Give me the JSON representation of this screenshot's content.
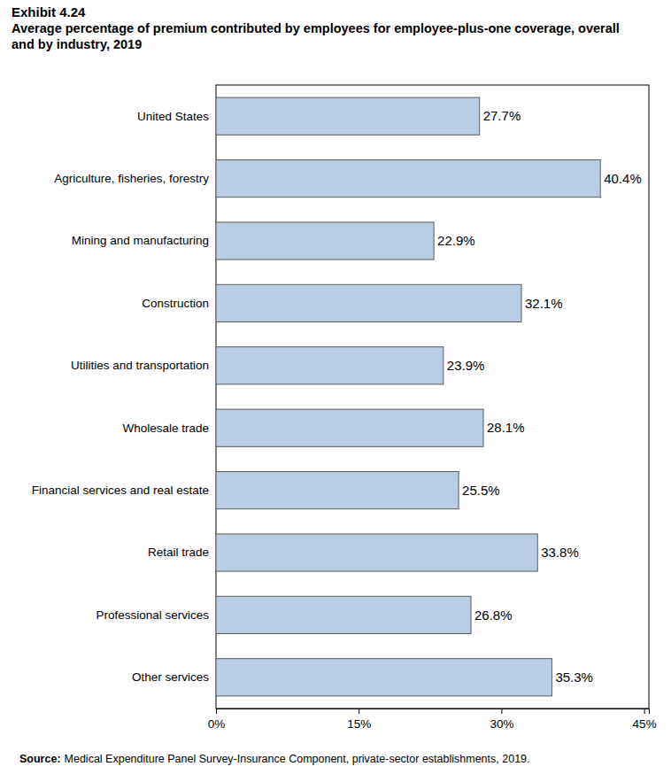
{
  "chart_data": {
    "type": "bar",
    "orientation": "horizontal",
    "title": "Exhibit 4.24",
    "subtitle": "Average percentage of premium contributed by employees for employee-plus-one coverage, overall and by industry, 2019",
    "categories": [
      "United States",
      "Agriculture, fisheries, forestry",
      "Mining and manufacturing",
      "Construction",
      "Utilities and transportation",
      "Wholesale trade",
      "Financial services and real estate",
      "Retail trade",
      "Professional services",
      "Other services"
    ],
    "values": [
      27.7,
      40.4,
      22.9,
      32.1,
      23.9,
      28.1,
      25.5,
      33.8,
      26.8,
      35.3
    ],
    "value_labels": [
      "27.7%",
      "40.4%",
      "22.9%",
      "32.1%",
      "23.9%",
      "28.1%",
      "25.5%",
      "33.8%",
      "26.8%",
      "35.3%"
    ],
    "color": "#b9cde5",
    "xlim": [
      0,
      45.5
    ],
    "xticks": [
      {
        "value": 0,
        "label": "0%"
      },
      {
        "value": 15,
        "label": "15%"
      },
      {
        "value": 30,
        "label": "30%"
      },
      {
        "value": 45,
        "label": "45%"
      }
    ],
    "grid": false,
    "data_labels": true,
    "source_label": "Source:",
    "source": "Medical Expenditure Panel Survey-Insurance Component, private-sector establishments, 2019."
  }
}
